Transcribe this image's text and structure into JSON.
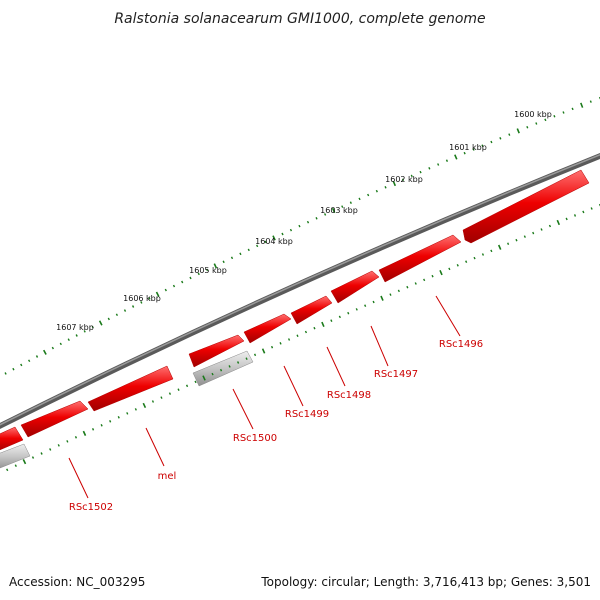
{
  "title": "Ralstonia solanacearum GMI1000, complete genome",
  "accession": "Accession: NC_003295",
  "summary": "Topology: circular; Length: 3,716,413 bp; Genes: 3,501",
  "scale_labels": [
    "1600 kbp",
    "1601 kbp",
    "1602 kbp",
    "1603 kbp",
    "1604 kbp",
    "1605 kbp",
    "1606 kbp",
    "1607 kbp"
  ],
  "gene_labels": [
    "RSc1496",
    "RSc1497",
    "RSc1498",
    "RSc1499",
    "RSc1500",
    "mel",
    "RSc1502"
  ],
  "colors": {
    "backbone": "#7a7a7a",
    "gene_forward": "#e00000",
    "gene_other": "#bbbbbb",
    "ticks": "#1a7a1a",
    "label": "#cc0000"
  }
}
